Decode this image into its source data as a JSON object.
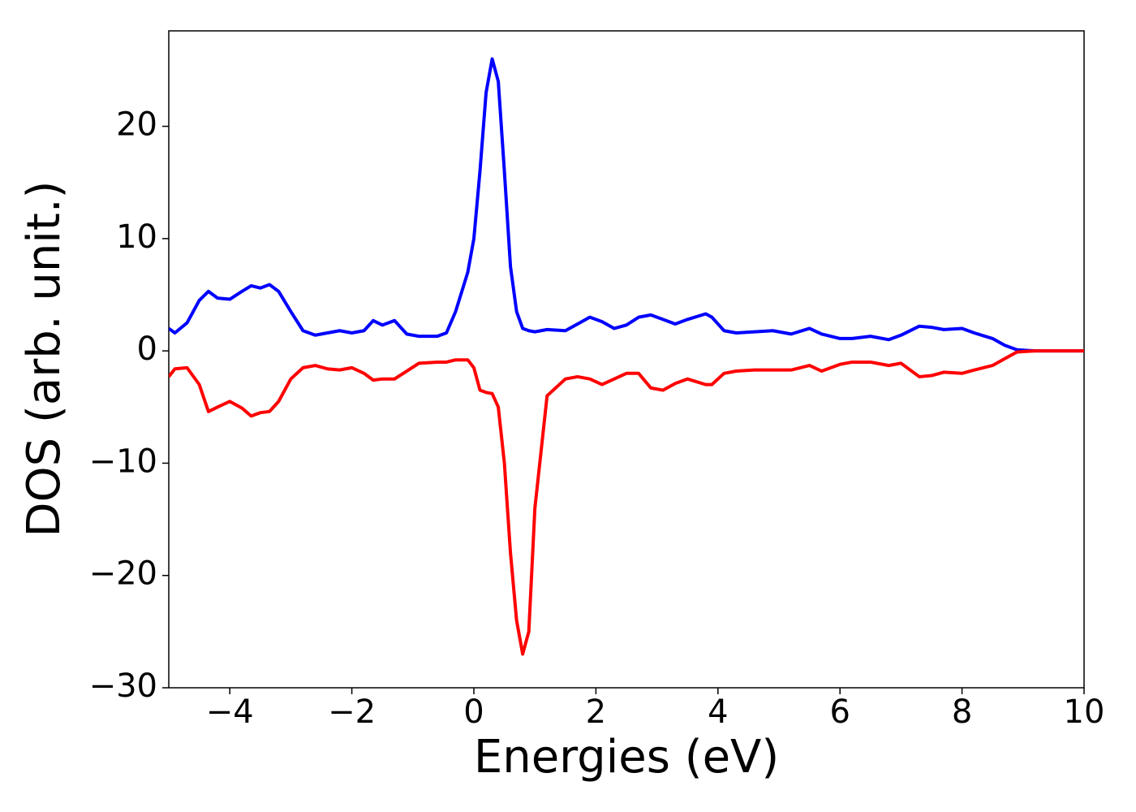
{
  "chart_data": {
    "type": "line",
    "xlabel": "Energies (eV)",
    "ylabel": "DOS (arb. unit.)",
    "xlim": [
      -5,
      10
    ],
    "ylim": [
      -30,
      28.5
    ],
    "xticks": [
      {
        "value": -4,
        "label": "−4"
      },
      {
        "value": -2,
        "label": "−2"
      },
      0,
      2,
      4,
      6,
      8,
      10
    ],
    "yticks": [
      {
        "value": -30,
        "label": "−30"
      },
      {
        "value": -20,
        "label": "−20"
      },
      {
        "value": -10,
        "label": "−10"
      },
      0,
      10,
      20
    ],
    "grid": false,
    "x": [
      -5,
      -4.9,
      -4.7,
      -4.5,
      -4.35,
      -4.2,
      -4.0,
      -3.8,
      -3.65,
      -3.5,
      -3.35,
      -3.2,
      -3.0,
      -2.8,
      -2.6,
      -2.4,
      -2.2,
      -2.0,
      -1.8,
      -1.65,
      -1.5,
      -1.3,
      -1.1,
      -0.9,
      -0.6,
      -0.45,
      -0.3,
      -0.1,
      0.0,
      0.1,
      0.2,
      0.3,
      0.4,
      0.5,
      0.6,
      0.7,
      0.8,
      0.9,
      1.0,
      1.2,
      1.5,
      1.7,
      1.9,
      2.1,
      2.3,
      2.5,
      2.7,
      2.9,
      3.1,
      3.3,
      3.5,
      3.8,
      3.9,
      4.1,
      4.3,
      4.6,
      4.9,
      5.2,
      5.5,
      5.7,
      6.0,
      6.2,
      6.5,
      6.8,
      7.0,
      7.3,
      7.5,
      7.7,
      8.0,
      8.2,
      8.5,
      8.7,
      8.9,
      9.2,
      10
    ],
    "series": [
      {
        "color": "#0000ff",
        "values": [
          2.0,
          1.6,
          2.5,
          4.5,
          5.3,
          4.7,
          4.6,
          5.3,
          5.8,
          5.6,
          5.9,
          5.3,
          3.5,
          1.8,
          1.4,
          1.6,
          1.8,
          1.6,
          1.8,
          2.7,
          2.3,
          2.7,
          1.5,
          1.3,
          1.3,
          1.6,
          3.5,
          7.0,
          10,
          16,
          23,
          26,
          24,
          16,
          7.5,
          3.5,
          2.0,
          1.8,
          1.7,
          1.9,
          1.8,
          2.4,
          3.0,
          2.6,
          2.0,
          2.3,
          3.0,
          3.2,
          2.8,
          2.4,
          2.8,
          3.3,
          3.0,
          1.8,
          1.6,
          1.7,
          1.8,
          1.5,
          2.0,
          1.5,
          1.1,
          1.1,
          1.3,
          1.0,
          1.4,
          2.2,
          2.1,
          1.9,
          2.0,
          1.6,
          1.1,
          0.5,
          0.1,
          0,
          0
        ]
      },
      {
        "color": "#ff0000",
        "values": [
          -2.3,
          -1.6,
          -1.5,
          -3.0,
          -5.4,
          -5.0,
          -4.5,
          -5.1,
          -5.8,
          -5.5,
          -5.4,
          -4.5,
          -2.5,
          -1.5,
          -1.3,
          -1.6,
          -1.7,
          -1.5,
          -2.0,
          -2.6,
          -2.5,
          -2.5,
          -1.8,
          -1.1,
          -1.0,
          -1.0,
          -0.8,
          -0.8,
          -1.5,
          -3.5,
          -3.7,
          -3.8,
          -5,
          -10,
          -18,
          -24,
          -27,
          -25,
          -14,
          -4,
          -2.5,
          -2.3,
          -2.5,
          -3.0,
          -2.5,
          -2.0,
          -2.0,
          -3.3,
          -3.5,
          -2.9,
          -2.5,
          -3.0,
          -3.0,
          -2.0,
          -1.8,
          -1.7,
          -1.7,
          -1.7,
          -1.3,
          -1.8,
          -1.2,
          -1.0,
          -1.0,
          -1.3,
          -1.1,
          -2.3,
          -2.2,
          -1.9,
          -2.0,
          -1.7,
          -1.3,
          -0.7,
          -0.1,
          0,
          0
        ]
      }
    ]
  }
}
